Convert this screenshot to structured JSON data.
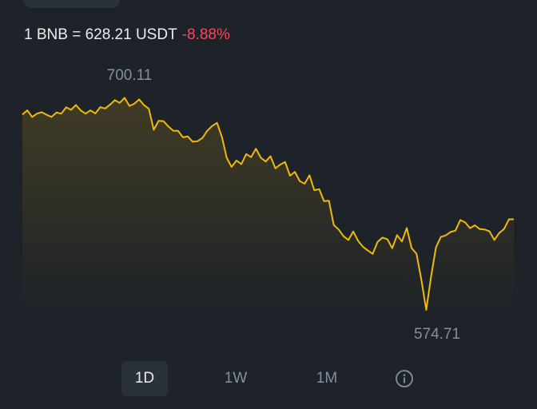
{
  "header": {
    "pair_text": "1 BNB = 628.21 USDT",
    "change_text": "-8.88%"
  },
  "colors": {
    "background": "#1e2329",
    "line": "#f0b90b",
    "negative": "#f6465d",
    "muted_text": "#848e9c"
  },
  "chart_data": {
    "type": "line",
    "high_label": "700.11",
    "low_label": "574.71",
    "high": 700.11,
    "low": 574.71,
    "last": 628.21,
    "y": [
      690.0,
      692.5,
      688.6,
      690.6,
      691.4,
      689.9,
      688.6,
      691.2,
      690.6,
      694.3,
      692.8,
      695.7,
      692.4,
      690.6,
      692.5,
      690.7,
      694.4,
      693.6,
      695.8,
      698.5,
      696.9,
      699.9,
      695.1,
      696.4,
      699.0,
      695.6,
      693.4,
      681.0,
      686.4,
      686.1,
      683.0,
      680.5,
      680.4,
      676.6,
      677.1,
      674.0,
      674.3,
      676.2,
      680.5,
      683.3,
      685.1,
      676.8,
      664.5,
      659.1,
      662.9,
      660.8,
      666.7,
      664.9,
      669.9,
      664.5,
      662.3,
      665.4,
      658.3,
      660.5,
      662.0,
      653.9,
      656.2,
      650.8,
      649.2,
      654.2,
      645.4,
      646.0,
      638.9,
      639.2,
      624.8,
      622.2,
      618.2,
      616.0,
      621.0,
      615.5,
      612.0,
      609.8,
      607.8,
      614.9,
      617.4,
      616.5,
      611.1,
      618.9,
      615.1,
      623.1,
      611.2,
      607.9,
      592.5,
      574.71,
      594.6,
      611.7,
      617.8,
      618.7,
      620.7,
      621.5,
      627.8,
      626.4,
      623.0,
      624.7,
      622.4,
      622.2,
      621.1,
      616.0,
      620.1,
      622.5,
      628.2,
      628.21
    ]
  },
  "ranges": [
    {
      "label": "1D",
      "active": true
    },
    {
      "label": "1W",
      "active": false
    },
    {
      "label": "1M",
      "active": false
    }
  ],
  "info_icon": "info-icon"
}
